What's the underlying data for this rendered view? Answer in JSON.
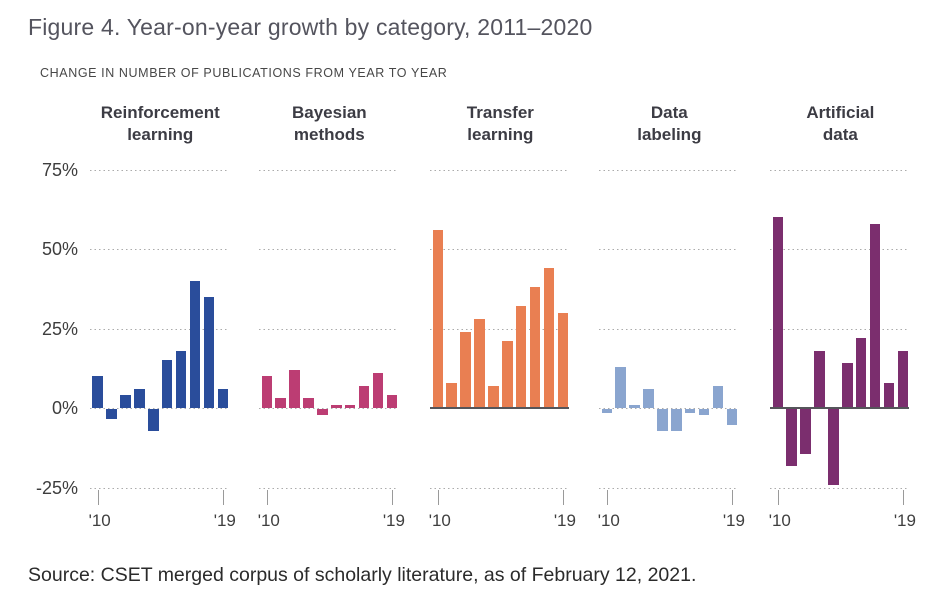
{
  "figure": {
    "title": "Figure 4. Year-on-year growth by category, 2011–2020",
    "subtitle": "CHANGE IN NUMBER OF PUBLICATIONS FROM YEAR TO YEAR",
    "source": "Source: CSET merged corpus of scholarly literature, as of February 12, 2021."
  },
  "chart_data": {
    "type": "bar",
    "title": "Figure 4. Year-on-year growth by category, 2011–2020",
    "axis_title": "CHANGE IN NUMBER OF PUBLICATIONS FROM YEAR TO YEAR",
    "unit": "%",
    "categories": [
      "2010",
      "2011",
      "2012",
      "2013",
      "2014",
      "2015",
      "2016",
      "2017",
      "2018",
      "2019"
    ],
    "x_tick_labels": [
      "'10",
      "'19"
    ],
    "y_ticks": [
      {
        "label": "75%",
        "value": 75
      },
      {
        "label": "50%",
        "value": 50
      },
      {
        "label": "25%",
        "value": 25
      },
      {
        "label": "0%",
        "value": 0
      },
      {
        "label": "-25%",
        "value": -25
      }
    ],
    "ylim": [
      -25,
      75
    ],
    "grid": "dotted horizontal lines at 25% intervals, per panel",
    "legend_position": "panel headers above each small multiple",
    "series": [
      {
        "name": "Reinforcement learning",
        "name_lines": [
          "Reinforcement",
          "learning"
        ],
        "color": "#2a4d9b",
        "zero_axis": false,
        "values": [
          10,
          -3,
          4,
          6,
          -7,
          15,
          18,
          40,
          35,
          6
        ]
      },
      {
        "name": "Bayesian methods",
        "name_lines": [
          "Bayesian",
          "methods"
        ],
        "color": "#bc3d73",
        "zero_axis": false,
        "values": [
          10,
          3,
          12,
          3,
          -2,
          1,
          1,
          7,
          11,
          4
        ]
      },
      {
        "name": "Transfer learning",
        "name_lines": [
          "Transfer",
          "learning"
        ],
        "color": "#e97f52",
        "zero_axis": true,
        "values": [
          56,
          8,
          24,
          28,
          7,
          21,
          32,
          38,
          44,
          30
        ]
      },
      {
        "name": "Data labeling",
        "name_lines": [
          "Data",
          "labeling"
        ],
        "color": "#8aa5cf",
        "zero_axis": false,
        "values": [
          -1,
          13,
          1,
          6,
          -7,
          -7,
          -1,
          -2,
          7,
          -5
        ]
      },
      {
        "name": "Artificial data",
        "name_lines": [
          "Artificial",
          "data"
        ],
        "color": "#7b2e6e",
        "zero_axis": true,
        "values": [
          60,
          -18,
          -14,
          18,
          -24,
          14,
          22,
          58,
          8,
          18
        ]
      }
    ]
  }
}
